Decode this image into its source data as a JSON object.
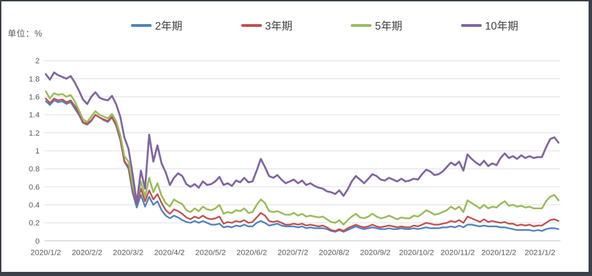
{
  "window": {
    "unit_label": "单位：%"
  },
  "chart_data": {
    "type": "line",
    "title": "",
    "ylabel": "",
    "xlabel": "",
    "unit": "%",
    "ylim": [
      0,
      2
    ],
    "y_tick_step": 0.2,
    "grid": "horizontal",
    "legend_position": "top",
    "y_ticks": [
      "2",
      "1.8",
      "1.6",
      "1.4",
      "1.2",
      "1",
      "0.8",
      "0.6",
      "0.4",
      "0.2",
      "0"
    ],
    "x_tick_labels": [
      "2020/1/2",
      "2020/2/2",
      "2020/3/2",
      "2020/4/2",
      "2020/5/2",
      "2020/6/2",
      "2020/7/2",
      "2020/8/2",
      "2020/9/2",
      "2020/10/2",
      "2020/11/2",
      "2020/12/2",
      "2021/1/2"
    ],
    "sampling": "10 samples per month, 2020/1/2 through mid-January 2021",
    "series": [
      {
        "name": "2年期",
        "color": "#4F81BD",
        "values": [
          1.55,
          1.51,
          1.56,
          1.54,
          1.55,
          1.52,
          1.54,
          1.47,
          1.4,
          1.31,
          1.29,
          1.33,
          1.4,
          1.37,
          1.34,
          1.32,
          1.37,
          1.28,
          1.12,
          0.88,
          0.8,
          0.53,
          0.37,
          0.51,
          0.38,
          0.49,
          0.4,
          0.44,
          0.34,
          0.28,
          0.25,
          0.28,
          0.26,
          0.23,
          0.21,
          0.2,
          0.22,
          0.2,
          0.22,
          0.2,
          0.18,
          0.18,
          0.19,
          0.15,
          0.16,
          0.15,
          0.17,
          0.16,
          0.18,
          0.16,
          0.16,
          0.2,
          0.22,
          0.2,
          0.17,
          0.18,
          0.19,
          0.17,
          0.16,
          0.16,
          0.16,
          0.15,
          0.16,
          0.14,
          0.15,
          0.14,
          0.14,
          0.14,
          0.13,
          0.11,
          0.1,
          0.12,
          0.1,
          0.12,
          0.14,
          0.16,
          0.14,
          0.13,
          0.14,
          0.15,
          0.14,
          0.13,
          0.13,
          0.14,
          0.13,
          0.13,
          0.14,
          0.13,
          0.13,
          0.14,
          0.13,
          0.14,
          0.15,
          0.14,
          0.14,
          0.14,
          0.15,
          0.15,
          0.16,
          0.15,
          0.17,
          0.15,
          0.18,
          0.18,
          0.17,
          0.16,
          0.17,
          0.16,
          0.16,
          0.16,
          0.15,
          0.15,
          0.14,
          0.13,
          0.12,
          0.12,
          0.12,
          0.12,
          0.11,
          0.12,
          0.11,
          0.13,
          0.14,
          0.14,
          0.13
        ]
      },
      {
        "name": "3年期",
        "color": "#C0504D",
        "values": [
          1.58,
          1.53,
          1.58,
          1.56,
          1.57,
          1.54,
          1.56,
          1.5,
          1.42,
          1.32,
          1.3,
          1.34,
          1.4,
          1.37,
          1.35,
          1.33,
          1.38,
          1.29,
          1.14,
          0.89,
          0.82,
          0.58,
          0.41,
          0.58,
          0.44,
          0.56,
          0.46,
          0.52,
          0.42,
          0.34,
          0.3,
          0.35,
          0.33,
          0.3,
          0.26,
          0.24,
          0.27,
          0.25,
          0.28,
          0.25,
          0.24,
          0.25,
          0.27,
          0.19,
          0.21,
          0.2,
          0.22,
          0.21,
          0.23,
          0.2,
          0.21,
          0.26,
          0.31,
          0.28,
          0.22,
          0.21,
          0.22,
          0.2,
          0.18,
          0.18,
          0.19,
          0.18,
          0.19,
          0.17,
          0.18,
          0.17,
          0.16,
          0.17,
          0.15,
          0.12,
          0.11,
          0.13,
          0.11,
          0.14,
          0.16,
          0.18,
          0.16,
          0.15,
          0.16,
          0.18,
          0.16,
          0.15,
          0.16,
          0.17,
          0.16,
          0.15,
          0.16,
          0.15,
          0.15,
          0.17,
          0.16,
          0.18,
          0.2,
          0.19,
          0.18,
          0.18,
          0.19,
          0.2,
          0.22,
          0.21,
          0.23,
          0.2,
          0.27,
          0.25,
          0.23,
          0.21,
          0.24,
          0.21,
          0.22,
          0.21,
          0.2,
          0.21,
          0.19,
          0.19,
          0.17,
          0.18,
          0.17,
          0.18,
          0.16,
          0.17,
          0.17,
          0.2,
          0.23,
          0.24,
          0.22
        ]
      },
      {
        "name": "5年期",
        "color": "#9BBB59",
        "values": [
          1.66,
          1.58,
          1.64,
          1.62,
          1.63,
          1.6,
          1.62,
          1.55,
          1.45,
          1.35,
          1.32,
          1.38,
          1.44,
          1.4,
          1.38,
          1.36,
          1.41,
          1.33,
          1.18,
          0.94,
          0.88,
          0.62,
          0.44,
          0.66,
          0.49,
          0.7,
          0.54,
          0.64,
          0.5,
          0.42,
          0.38,
          0.46,
          0.43,
          0.41,
          0.34,
          0.32,
          0.36,
          0.33,
          0.38,
          0.35,
          0.34,
          0.36,
          0.4,
          0.3,
          0.32,
          0.31,
          0.34,
          0.33,
          0.36,
          0.31,
          0.32,
          0.4,
          0.46,
          0.42,
          0.33,
          0.32,
          0.33,
          0.31,
          0.29,
          0.29,
          0.31,
          0.28,
          0.3,
          0.27,
          0.28,
          0.27,
          0.26,
          0.27,
          0.24,
          0.21,
          0.2,
          0.23,
          0.18,
          0.23,
          0.27,
          0.3,
          0.26,
          0.25,
          0.27,
          0.3,
          0.27,
          0.25,
          0.26,
          0.28,
          0.26,
          0.24,
          0.26,
          0.25,
          0.25,
          0.28,
          0.27,
          0.3,
          0.34,
          0.32,
          0.29,
          0.3,
          0.32,
          0.34,
          0.38,
          0.35,
          0.38,
          0.32,
          0.45,
          0.42,
          0.39,
          0.36,
          0.4,
          0.36,
          0.38,
          0.37,
          0.41,
          0.44,
          0.39,
          0.4,
          0.38,
          0.39,
          0.37,
          0.38,
          0.36,
          0.36,
          0.36,
          0.44,
          0.49,
          0.51,
          0.45
        ]
      },
      {
        "name": "10年期",
        "color": "#8064A2",
        "values": [
          1.85,
          1.79,
          1.87,
          1.84,
          1.82,
          1.8,
          1.83,
          1.76,
          1.67,
          1.57,
          1.52,
          1.6,
          1.65,
          1.59,
          1.57,
          1.56,
          1.61,
          1.52,
          1.38,
          1.15,
          1.02,
          0.74,
          0.42,
          0.78,
          0.58,
          1.18,
          0.88,
          1.06,
          0.86,
          0.76,
          0.62,
          0.7,
          0.75,
          0.72,
          0.63,
          0.6,
          0.63,
          0.59,
          0.66,
          0.62,
          0.63,
          0.66,
          0.71,
          0.62,
          0.64,
          0.61,
          0.67,
          0.65,
          0.7,
          0.65,
          0.66,
          0.78,
          0.91,
          0.82,
          0.72,
          0.7,
          0.73,
          0.68,
          0.64,
          0.66,
          0.68,
          0.64,
          0.67,
          0.62,
          0.64,
          0.61,
          0.59,
          0.58,
          0.55,
          0.54,
          0.52,
          0.56,
          0.5,
          0.57,
          0.66,
          0.72,
          0.68,
          0.64,
          0.69,
          0.74,
          0.72,
          0.68,
          0.67,
          0.7,
          0.68,
          0.66,
          0.69,
          0.66,
          0.67,
          0.69,
          0.68,
          0.74,
          0.79,
          0.77,
          0.73,
          0.74,
          0.77,
          0.82,
          0.87,
          0.84,
          0.88,
          0.78,
          0.96,
          0.91,
          0.87,
          0.84,
          0.89,
          0.83,
          0.86,
          0.84,
          0.92,
          0.97,
          0.92,
          0.94,
          0.91,
          0.95,
          0.92,
          0.94,
          0.92,
          0.93,
          0.93,
          1.04,
          1.13,
          1.15,
          1.09
        ]
      }
    ]
  }
}
